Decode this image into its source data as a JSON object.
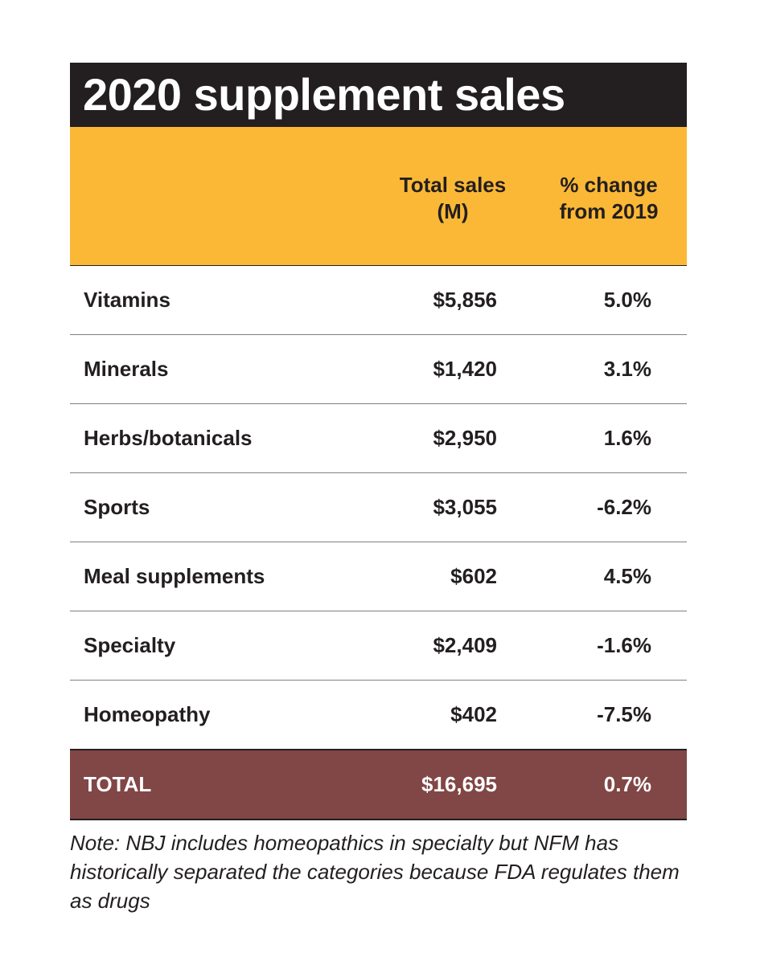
{
  "chart_data": {
    "type": "table",
    "title": "2020 supplement sales",
    "columns": [
      "",
      "Total sales (M)",
      "% change from 2019"
    ],
    "header_lines": [
      [
        "Total sales",
        "(M)"
      ],
      [
        "% change",
        "from 2019"
      ]
    ],
    "rows": [
      {
        "category": "Vitamins",
        "sales": "$5,856",
        "change": "5.0%"
      },
      {
        "category": "Minerals",
        "sales": "$1,420",
        "change": "3.1%"
      },
      {
        "category": "Herbs/botanicals",
        "sales": "$2,950",
        "change": "1.6%"
      },
      {
        "category": "Sports",
        "sales": "$3,055",
        "change": "-6.2%"
      },
      {
        "category": "Meal supplements",
        "sales": "$602",
        "change": "4.5%"
      },
      {
        "category": "Specialty",
        "sales": "$2,409",
        "change": "-1.6%"
      },
      {
        "category": "Homeopathy",
        "sales": "$402",
        "change": "-7.5%"
      }
    ],
    "total": {
      "category": "TOTAL",
      "sales": "$16,695",
      "change": "0.7%"
    },
    "note": "Note: NBJ includes homeopathics in specialty but NFM has historically separated the categories because FDA regulates them as drugs",
    "colors": {
      "title_bg": "#231f20",
      "header_bg": "#fbb836",
      "total_bg": "#814646"
    }
  }
}
